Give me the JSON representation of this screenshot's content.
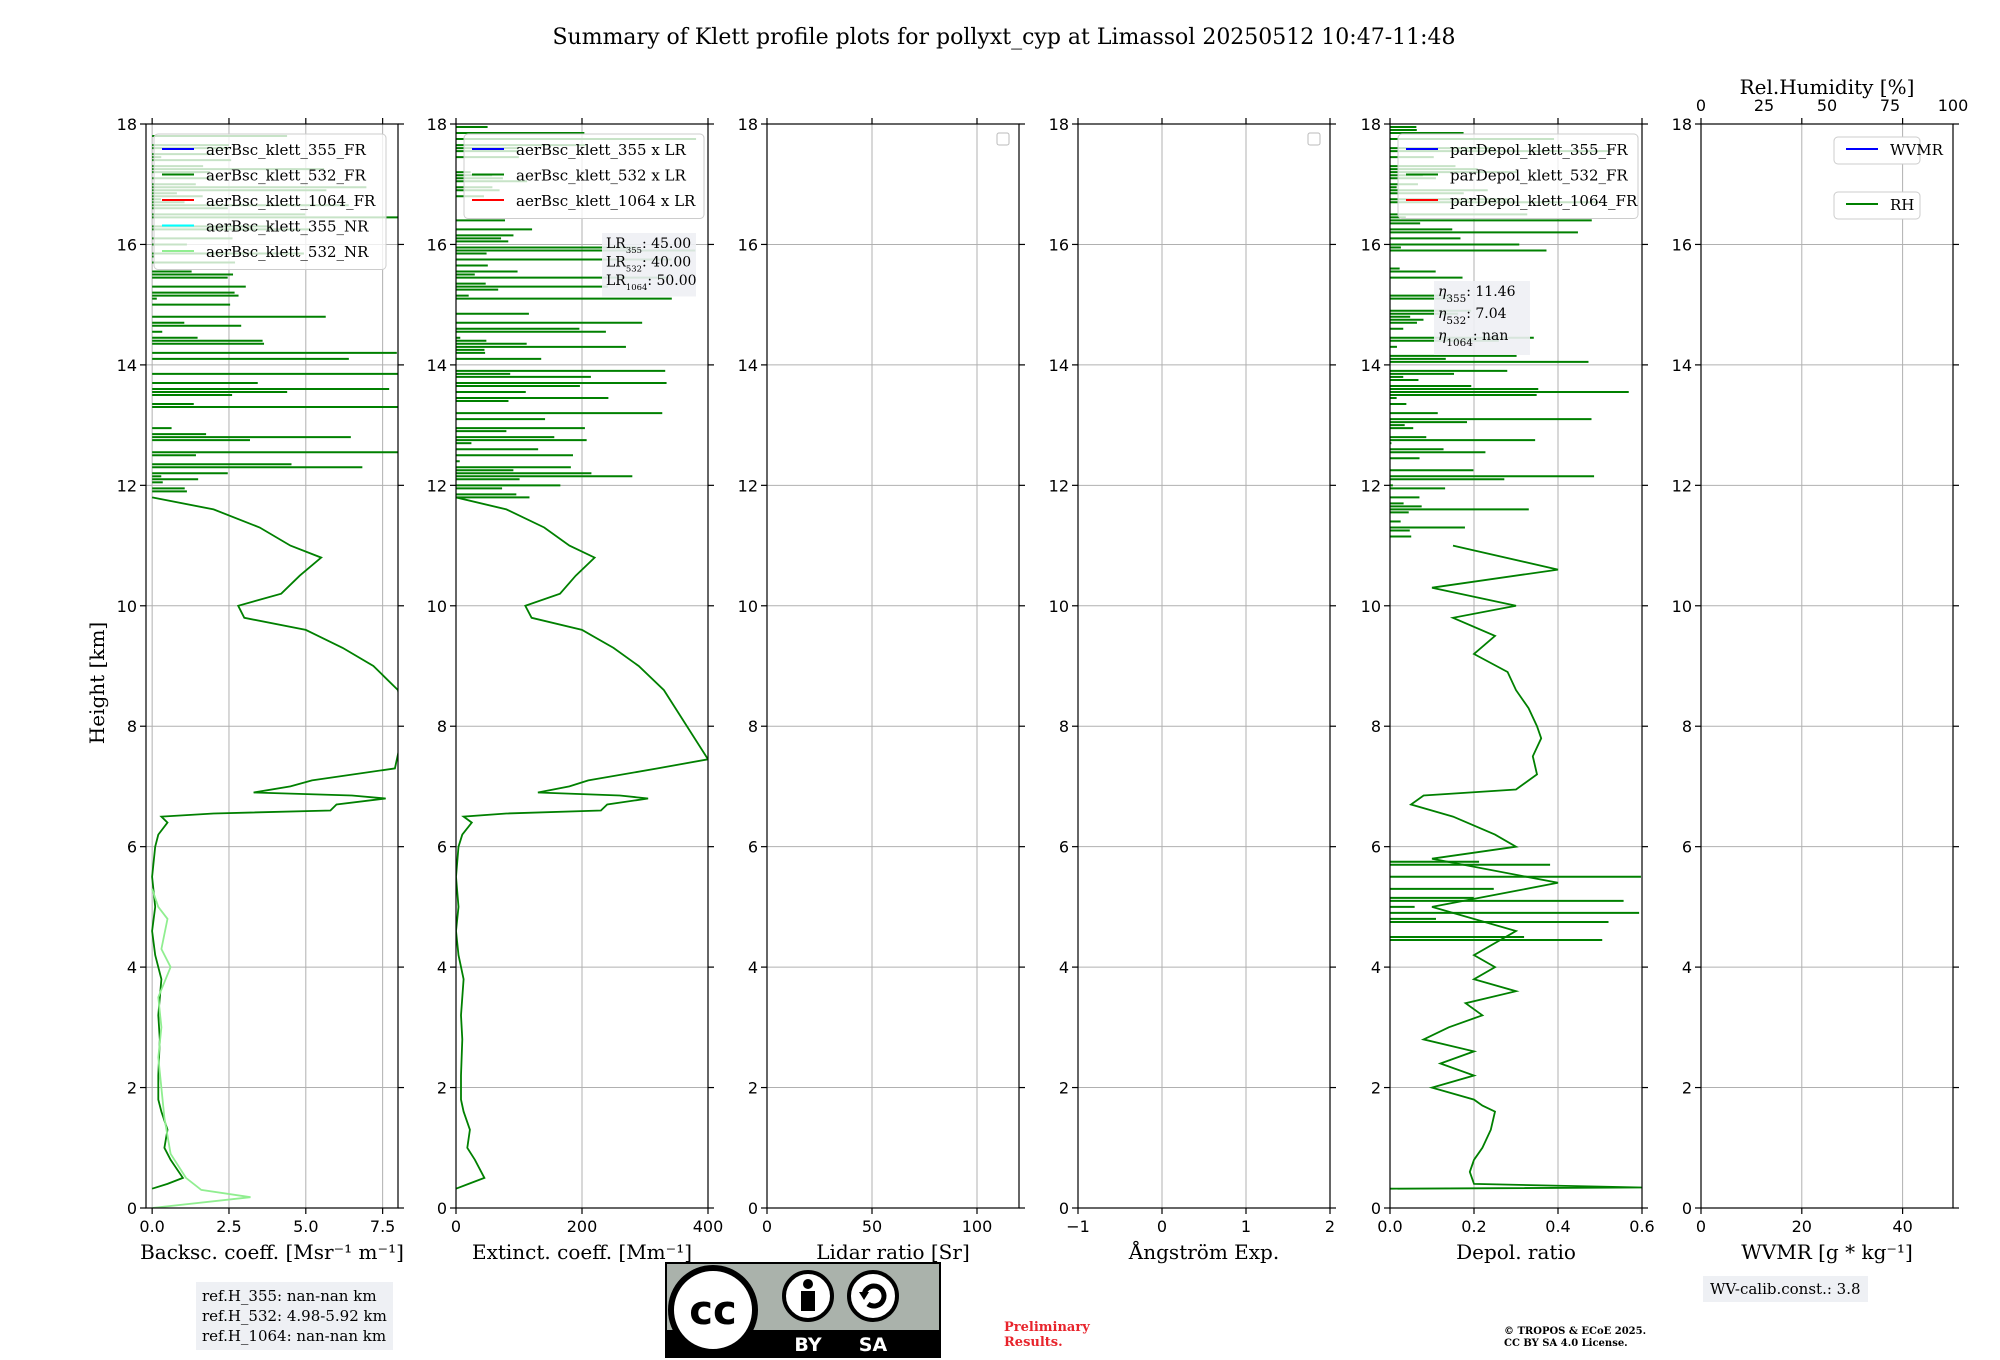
{
  "figure_title": "Summary of Klett profile plots for pollyxt_cyp at Limassol 20250512 10:47-11:48",
  "y_axis_label": "Height [km]",
  "y_ticks": [
    "0",
    "2",
    "4",
    "6",
    "8",
    "10",
    "12",
    "14",
    "16",
    "18"
  ],
  "top_axis": {
    "label": "Rel.Humidity [%]",
    "ticks": [
      "0",
      "25",
      "50",
      "75",
      "100"
    ]
  },
  "ref_heights": [
    "ref.H_355: nan-nan km",
    "ref.H_532: 4.98-5.92 km",
    "ref.H_1064: nan-nan km"
  ],
  "wv_calib": "WV-calib.const.: 3.8",
  "preliminary": [
    "Preliminary",
    "Results."
  ],
  "copyright": [
    "© TROPOS & ECoE 2025.",
    "CC BY SA 4.0 License."
  ],
  "cc_badge": {
    "label_by": "BY",
    "label_sa": "SA",
    "cc": "cc"
  },
  "colors": {
    "blue": "#0000ff",
    "green": "#008000",
    "red": "#ff0000",
    "cyan": "#00ffff",
    "lightgreen": "#90ee90",
    "grid": "#b0b0b0"
  },
  "lidar_ratio_annot": [
    {
      "sub": "355",
      "val": ": 45.00"
    },
    {
      "sub": "532",
      "val": ": 40.00"
    },
    {
      "sub": "1064",
      "val": ": 50.00"
    }
  ],
  "eta_annot": [
    {
      "sub": "355",
      "val": ": 11.46"
    },
    {
      "sub": "532",
      "val": ": 7.04"
    },
    {
      "sub": "1064",
      "val": ": nan"
    }
  ],
  "chart_data": [
    {
      "type": "line",
      "xlabel": "Backsc. coeff. [Msr⁻¹ m⁻¹]",
      "ylabel": "Height [km]",
      "xlim": [
        -0.2,
        8.0
      ],
      "ylim": [
        0,
        18
      ],
      "xticks": [
        0,
        2.5,
        5.0,
        7.5
      ],
      "xtick_labels": [
        "0.0",
        "2.5",
        "5.0",
        "7.5"
      ],
      "legend": [
        "aerBsc_klett_355_FR",
        "aerBsc_klett_532_FR",
        "aerBsc_klett_1064_FR",
        "aerBsc_klett_355_NR",
        "aerBsc_klett_532_NR"
      ],
      "legend_colors": [
        "#0000ff",
        "#008000",
        "#ff0000",
        "#00ffff",
        "#90ee90"
      ],
      "series": [
        {
          "name": "aerBsc_klett_532_FR",
          "color": "#008000",
          "points": [
            [
              0,
              0.32
            ],
            [
              0.5,
              0.4
            ],
            [
              1.0,
              0.5
            ],
            [
              0.6,
              0.8
            ],
            [
              0.4,
              1.0
            ],
            [
              0.5,
              1.3
            ],
            [
              0.3,
              1.6
            ],
            [
              0.2,
              1.8
            ],
            [
              0.2,
              2.2
            ],
            [
              0.25,
              2.8
            ],
            [
              0.2,
              3.2
            ],
            [
              0.3,
              3.8
            ],
            [
              0.1,
              4.2
            ],
            [
              0.0,
              4.6
            ],
            [
              0.1,
              5.0
            ],
            [
              0.0,
              5.5
            ],
            [
              0.1,
              6.0
            ],
            [
              0.2,
              6.2
            ],
            [
              0.5,
              6.4
            ],
            [
              0.3,
              6.5
            ],
            [
              2.0,
              6.55
            ],
            [
              5.8,
              6.6
            ],
            [
              6.0,
              6.7
            ],
            [
              7.6,
              6.8
            ],
            [
              6.5,
              6.85
            ],
            [
              3.3,
              6.9
            ],
            [
              4.5,
              7.0
            ],
            [
              5.2,
              7.1
            ],
            [
              7.9,
              7.3
            ],
            [
              8.2,
              8.0
            ],
            [
              8.0,
              8.6
            ],
            [
              7.2,
              9.0
            ],
            [
              6.2,
              9.3
            ],
            [
              5.0,
              9.6
            ],
            [
              3.0,
              9.8
            ],
            [
              2.8,
              10.0
            ],
            [
              4.2,
              10.2
            ],
            [
              4.8,
              10.5
            ],
            [
              5.5,
              10.8
            ],
            [
              4.5,
              11.0
            ],
            [
              3.5,
              11.3
            ],
            [
              2.0,
              11.6
            ],
            [
              0.0,
              11.8
            ]
          ],
          "noise_above_km": 11.8,
          "noise_max": 8.0
        },
        {
          "name": "aerBsc_klett_532_NR",
          "color": "#90ee90",
          "points": [
            [
              0.0,
              0.0
            ],
            [
              3.2,
              0.18
            ],
            [
              1.6,
              0.3
            ],
            [
              1.1,
              0.5
            ],
            [
              0.6,
              0.9
            ],
            [
              0.4,
              1.5
            ],
            [
              0.2,
              2.5
            ],
            [
              0.3,
              3.0
            ],
            [
              0.2,
              3.5
            ],
            [
              0.6,
              4.0
            ],
            [
              0.3,
              4.3
            ],
            [
              0.5,
              4.8
            ],
            [
              0.2,
              5.0
            ],
            [
              0.0,
              5.3
            ]
          ]
        }
      ]
    },
    {
      "type": "line",
      "xlabel": "Extinct. coeff. [Mm⁻¹]",
      "xlim": [
        0,
        400
      ],
      "ylim": [
        0,
        18
      ],
      "xticks": [
        0,
        200,
        400
      ],
      "xtick_labels": [
        "0",
        "200",
        "400"
      ],
      "legend": [
        "aerBsc_klett_355 x LR",
        "aerBsc_klett_532 x LR",
        "aerBsc_klett_1064 x LR"
      ],
      "legend_colors": [
        "#0000ff",
        "#008000",
        "#ff0000"
      ],
      "series": [
        {
          "name": "aerBsc_klett_532 x LR",
          "color": "#008000",
          "points": [
            [
              0,
              0.32
            ],
            [
              20,
              0.4
            ],
            [
              45,
              0.5
            ],
            [
              30,
              0.8
            ],
            [
              18,
              1.0
            ],
            [
              22,
              1.3
            ],
            [
              12,
              1.6
            ],
            [
              8,
              1.8
            ],
            [
              8,
              2.2
            ],
            [
              10,
              2.8
            ],
            [
              8,
              3.2
            ],
            [
              12,
              3.8
            ],
            [
              4,
              4.2
            ],
            [
              0,
              4.6
            ],
            [
              4,
              5.0
            ],
            [
              0,
              5.5
            ],
            [
              4,
              6.0
            ],
            [
              10,
              6.2
            ],
            [
              25,
              6.4
            ],
            [
              12,
              6.5
            ],
            [
              80,
              6.55
            ],
            [
              230,
              6.6
            ],
            [
              240,
              6.7
            ],
            [
              305,
              6.8
            ],
            [
              260,
              6.85
            ],
            [
              130,
              6.9
            ],
            [
              180,
              7.0
            ],
            [
              210,
              7.1
            ],
            [
              320,
              7.3
            ],
            [
              400,
              7.45
            ],
            [
              330,
              8.6
            ],
            [
              290,
              9.0
            ],
            [
              250,
              9.3
            ],
            [
              200,
              9.6
            ],
            [
              120,
              9.8
            ],
            [
              110,
              10.0
            ],
            [
              165,
              10.2
            ],
            [
              190,
              10.5
            ],
            [
              220,
              10.8
            ],
            [
              180,
              11.0
            ],
            [
              140,
              11.3
            ],
            [
              80,
              11.6
            ],
            [
              0,
              11.8
            ]
          ],
          "noise_above_km": 11.8,
          "noise_max": 400
        }
      ]
    },
    {
      "type": "line",
      "xlabel": "Lidar ratio [Sr]",
      "xlim": [
        0,
        120
      ],
      "ylim": [
        0,
        18
      ],
      "xticks": [
        0,
        50,
        100
      ],
      "xtick_labels": [
        "0",
        "50",
        "100"
      ],
      "series": []
    },
    {
      "type": "line",
      "xlabel": "Ångström Exp.",
      "xlim": [
        -1,
        2
      ],
      "ylim": [
        0,
        18
      ],
      "xticks": [
        -1,
        0,
        1,
        2
      ],
      "xtick_labels": [
        "−1",
        "0",
        "1",
        "2"
      ],
      "series": []
    },
    {
      "type": "line",
      "xlabel": "Depol. ratio",
      "xlim": [
        0,
        0.6
      ],
      "ylim": [
        0,
        18
      ],
      "xticks": [
        0,
        0.2,
        0.4,
        0.6
      ],
      "xtick_labels": [
        "0.0",
        "0.2",
        "0.4",
        "0.6"
      ],
      "legend": [
        "parDepol_klett_355_FR",
        "parDepol_klett_532_FR",
        "parDepol_klett_1064_FR"
      ],
      "legend_colors": [
        "#0000ff",
        "#008000",
        "#ff0000"
      ],
      "series": [
        {
          "name": "parDepol_klett_532_FR",
          "color": "#008000",
          "points": [
            [
              0,
              0.32
            ],
            [
              0.6,
              0.34
            ],
            [
              0.2,
              0.4
            ],
            [
              0.19,
              0.6
            ],
            [
              0.2,
              0.8
            ],
            [
              0.22,
              1.0
            ],
            [
              0.24,
              1.3
            ],
            [
              0.25,
              1.6
            ],
            [
              0.22,
              1.7
            ],
            [
              0.2,
              1.8
            ],
            [
              0.1,
              2.0
            ],
            [
              0.2,
              2.2
            ],
            [
              0.12,
              2.4
            ],
            [
              0.2,
              2.6
            ],
            [
              0.08,
              2.8
            ],
            [
              0.14,
              3.0
            ],
            [
              0.22,
              3.2
            ],
            [
              0.18,
              3.4
            ],
            [
              0.3,
              3.6
            ],
            [
              0.2,
              3.8
            ],
            [
              0.25,
              4.0
            ],
            [
              0.2,
              4.2
            ],
            [
              0.3,
              4.6
            ],
            [
              0.1,
              5.0
            ],
            [
              0.4,
              5.4
            ],
            [
              0.1,
              5.8
            ],
            [
              0.3,
              6.0
            ],
            [
              0.25,
              6.2
            ],
            [
              0.15,
              6.5
            ],
            [
              0.05,
              6.7
            ],
            [
              0.08,
              6.85
            ],
            [
              0.3,
              6.95
            ],
            [
              0.35,
              7.2
            ],
            [
              0.34,
              7.5
            ],
            [
              0.36,
              7.8
            ],
            [
              0.35,
              8.0
            ],
            [
              0.33,
              8.3
            ],
            [
              0.3,
              8.6
            ],
            [
              0.28,
              8.9
            ],
            [
              0.2,
              9.2
            ],
            [
              0.25,
              9.5
            ],
            [
              0.15,
              9.8
            ],
            [
              0.3,
              10.0
            ],
            [
              0.1,
              10.3
            ],
            [
              0.4,
              10.6
            ],
            [
              0.15,
              11.0
            ]
          ],
          "noise_above_km": 11.0,
          "noise_max": 0.6,
          "noise_band_km": [
            4.4,
            6.0
          ]
        }
      ]
    },
    {
      "type": "line",
      "xlabel": "WVMR [g * kg⁻¹]",
      "xlim": [
        0,
        50
      ],
      "ylim": [
        0,
        18
      ],
      "xticks": [
        0,
        20,
        40
      ],
      "xtick_labels": [
        "0",
        "20",
        "40"
      ],
      "legend": [
        "WVMR",
        "RH"
      ],
      "legend_colors": [
        "#0000ff",
        "#008000"
      ],
      "series": []
    }
  ]
}
